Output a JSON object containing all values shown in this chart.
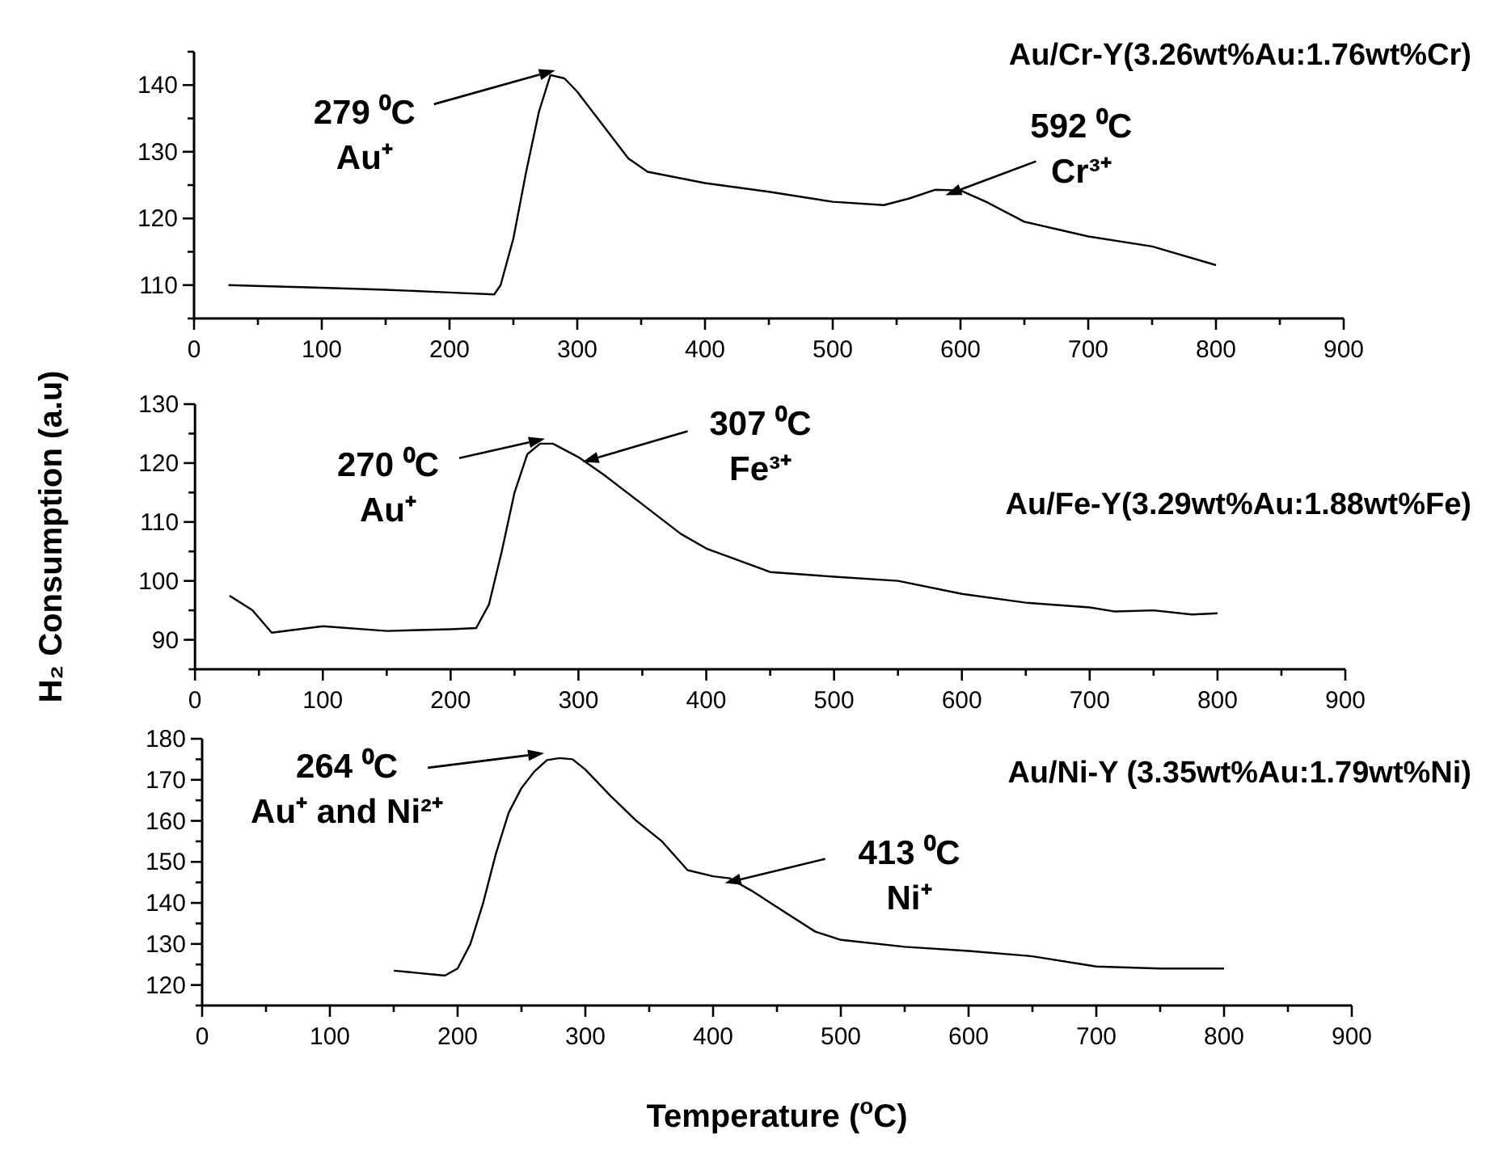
{
  "chart_data": [
    {
      "type": "line",
      "title": "Au/Cr-Y(3.26wt%Au:1.76wt%Cr)",
      "tick_labels": true,
      "series": [
        {
          "color": "#000000",
          "x": [
            27,
            100,
            150,
            200,
            235,
            240,
            250,
            260,
            270,
            279,
            290,
            300,
            320,
            340,
            355,
            400,
            450,
            500,
            540,
            560,
            580,
            600,
            620,
            650,
            700,
            750,
            800
          ],
          "values": [
            110,
            109.6,
            109.3,
            108.9,
            108.6,
            110,
            117,
            127,
            136,
            141.5,
            141,
            139,
            134,
            129,
            127,
            125.3,
            124,
            122.5,
            122,
            123,
            124.3,
            124.2,
            122.5,
            119.5,
            117.3,
            115.8,
            113
          ]
        }
      ],
      "xlim": [
        0,
        900
      ],
      "ylim": [
        105,
        145
      ],
      "xticks": [
        0,
        {
          "value": 50,
          "label": null
        },
        100,
        {
          "value": 150,
          "label": null
        },
        200,
        {
          "value": 250,
          "label": null
        },
        300,
        {
          "value": 350,
          "label": null
        },
        400,
        {
          "value": 450,
          "label": null
        },
        500,
        {
          "value": 550,
          "label": null
        },
        600,
        {
          "value": 650,
          "label": null
        },
        700,
        {
          "value": 750,
          "label": null
        },
        800,
        {
          "value": 850,
          "label": null
        },
        900
      ],
      "yticks": [
        {
          "value": 105,
          "label": null
        },
        110,
        {
          "value": 115,
          "label": null
        },
        120,
        {
          "value": 125,
          "label": null
        },
        130,
        {
          "value": 135,
          "label": null
        },
        140,
        {
          "value": 145,
          "label": null
        }
      ],
      "annotations": [
        {
          "text": "279 ⁰C\nAu⁺",
          "x": 279,
          "y": 141.5
        },
        {
          "text": "592 ⁰C\nCr³⁺",
          "x": 592,
          "y": 124.2
        }
      ]
    },
    {
      "type": "line",
      "title": "Au/Fe-Y(3.29wt%Au:1.88wt%Fe)",
      "ylabel": "H₂ Consumption (a.u)",
      "series": [
        {
          "color": "#000000",
          "x": [
            27,
            45,
            60,
            100,
            150,
            200,
            220,
            230,
            240,
            250,
            260,
            270,
            280,
            300,
            320,
            350,
            380,
            400,
            450,
            500,
            550,
            600,
            650,
            700,
            720,
            750,
            780,
            800
          ],
          "values": [
            97.5,
            95,
            91.2,
            92.3,
            91.5,
            91.8,
            92,
            96,
            105,
            115,
            121.5,
            123.3,
            123.3,
            121,
            118,
            113,
            108,
            105.5,
            101.5,
            100.7,
            100,
            97.8,
            96.3,
            95.5,
            94.8,
            95,
            94.3,
            94.5
          ]
        }
      ],
      "xlim": [
        0,
        900
      ],
      "ylim": [
        85,
        130
      ],
      "xticks": [
        0,
        {
          "value": 50,
          "label": null
        },
        100,
        {
          "value": 150,
          "label": null
        },
        200,
        {
          "value": 250,
          "label": null
        },
        300,
        {
          "value": 350,
          "label": null
        },
        400,
        {
          "value": 450,
          "label": null
        },
        500,
        {
          "value": 550,
          "label": null
        },
        600,
        {
          "value": 650,
          "label": null
        },
        700,
        {
          "value": 750,
          "label": null
        },
        800,
        {
          "value": 850,
          "label": null
        },
        900
      ],
      "yticks": [
        {
          "value": 85,
          "label": null
        },
        90,
        {
          "value": 95,
          "label": null
        },
        100,
        {
          "value": 105,
          "label": null
        },
        110,
        {
          "value": 115,
          "label": null
        },
        120,
        {
          "value": 125,
          "label": null
        },
        130
      ],
      "annotations": [
        {
          "text": "270 ⁰C\nAu⁺",
          "x": 270,
          "y": 123.3
        },
        {
          "text": "307 ⁰C\nFe³⁺",
          "x": 307,
          "y": 121
        }
      ]
    },
    {
      "type": "line",
      "title": "Au/Ni-Y (3.35wt%Au:1.79wt%Ni)",
      "xlabel": "Temperature ($^{o}$C)",
      "series": [
        {
          "color": "#000000",
          "x": [
            150,
            190,
            200,
            210,
            220,
            230,
            240,
            250,
            260,
            270,
            280,
            290,
            300,
            320,
            340,
            360,
            380,
            400,
            413,
            430,
            450,
            480,
            500,
            550,
            600,
            650,
            700,
            750,
            800
          ],
          "values": [
            123.5,
            122.3,
            124,
            130,
            140,
            152,
            162,
            168,
            172,
            174.8,
            175.3,
            175,
            172.5,
            166,
            160,
            155,
            148,
            146.5,
            146,
            143,
            139,
            133,
            131,
            129.3,
            128.3,
            127,
            124.5,
            124,
            124
          ]
        }
      ],
      "xlim": [
        0,
        900
      ],
      "ylim": [
        115,
        180
      ],
      "xticks": [
        0,
        {
          "value": 50,
          "label": null
        },
        100,
        {
          "value": 150,
          "label": null
        },
        200,
        {
          "value": 250,
          "label": null
        },
        300,
        {
          "value": 350,
          "label": null
        },
        400,
        {
          "value": 450,
          "label": null
        },
        500,
        {
          "value": 550,
          "label": null
        },
        600,
        {
          "value": 650,
          "label": null
        },
        700,
        {
          "value": 750,
          "label": null
        },
        800,
        {
          "value": 850,
          "label": null
        },
        900
      ],
      "yticks": [
        {
          "value": 115,
          "label": null
        },
        120,
        {
          "value": 125,
          "label": null
        },
        130,
        {
          "value": 135,
          "label": null
        },
        140,
        {
          "value": 145,
          "label": null
        },
        150,
        {
          "value": 155,
          "label": null
        },
        160,
        {
          "value": 165,
          "label": null
        },
        170,
        {
          "value": 175,
          "label": null
        },
        180
      ],
      "annotations": [
        {
          "text": "264 ⁰C\nAu⁺ and Ni²⁺",
          "x": 264,
          "y": 175.3
        },
        {
          "text": "413 ⁰C\nNi⁺",
          "x": 413,
          "y": 146
        }
      ]
    }
  ]
}
